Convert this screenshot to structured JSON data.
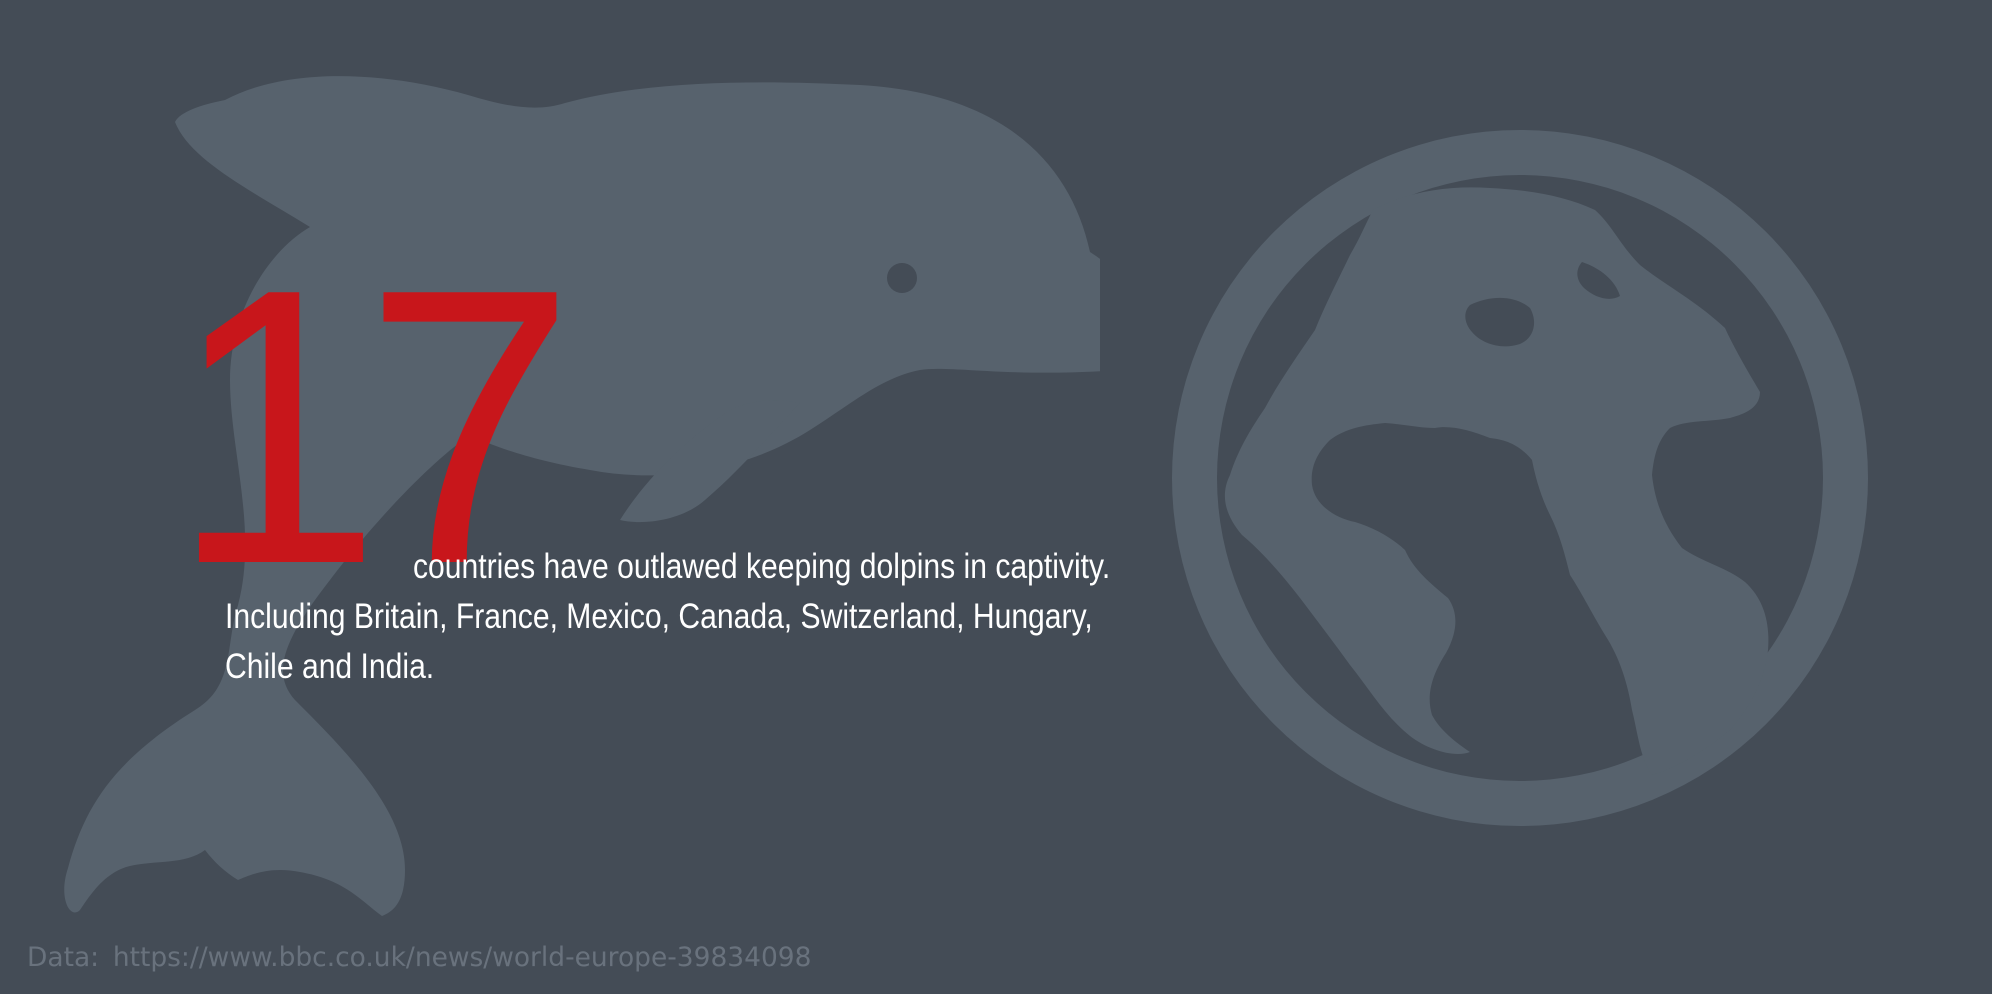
{
  "colors": {
    "background": "#444c56",
    "illustration": "#57626d",
    "accent": "#c8161b",
    "text": "#ffffff",
    "source_text": "#69727d"
  },
  "illustrations": {
    "left_icon": "dolphin-icon",
    "right_icon": "globe-icon"
  },
  "headline": {
    "number": "17",
    "text": "countries have outlawed keeping dolpins in captivity."
  },
  "detail": {
    "line1": "Including Britain, France, Mexico, Canada, Switzerland, Hungary,",
    "line2": "Chile and India."
  },
  "source": {
    "label": "Data:",
    "url": "https://www.bbc.co.uk/news/world-europe-39834098"
  }
}
